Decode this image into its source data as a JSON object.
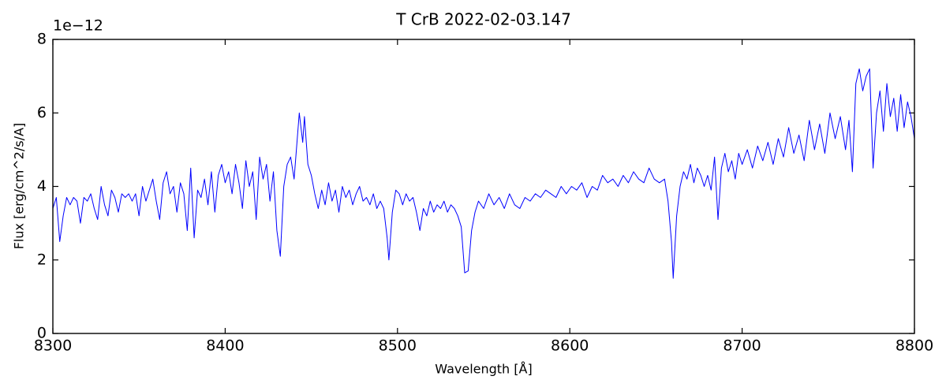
{
  "chart_data": {
    "type": "line",
    "title": "T CrB  2022-02-03.147",
    "x_label": "Wavelength [Å]",
    "y_label": "Flux [erg/cm^2/s/A]",
    "y_offset_label": "1e−12",
    "xlim": [
      8300,
      8800
    ],
    "xticks": [
      8300,
      8400,
      8500,
      8600,
      8700,
      8800
    ],
    "ylim": [
      0,
      8
    ],
    "yticks": [
      0,
      2,
      4,
      6,
      8
    ],
    "grid": false,
    "series": [
      {
        "color": "#0000ff",
        "x": [
          8300,
          8302,
          8304,
          8306,
          8308,
          8310,
          8312,
          8314,
          8316,
          8318,
          8320,
          8322,
          8324,
          8326,
          8328,
          8330,
          8332,
          8334,
          8336,
          8338,
          8340,
          8342,
          8344,
          8346,
          8348,
          8350,
          8352,
          8354,
          8356,
          8358,
          8360,
          8362,
          8364,
          8366,
          8368,
          8370,
          8372,
          8374,
          8376,
          8378,
          8380,
          8382,
          8384,
          8386,
          8388,
          8390,
          8392,
          8394,
          8396,
          8398,
          8400,
          8402,
          8404,
          8406,
          8408,
          8410,
          8412,
          8414,
          8416,
          8418,
          8420,
          8422,
          8424,
          8426,
          8428,
          8430,
          8432,
          8434,
          8436,
          8438,
          8440,
          8442,
          8443,
          8445,
          8446,
          8448,
          8450,
          8452,
          8454,
          8456,
          8458,
          8460,
          8462,
          8464,
          8466,
          8468,
          8470,
          8472,
          8474,
          8476,
          8478,
          8480,
          8482,
          8484,
          8486,
          8488,
          8490,
          8492,
          8494,
          8495,
          8497,
          8499,
          8501,
          8503,
          8505,
          8507,
          8509,
          8511,
          8513,
          8515,
          8517,
          8519,
          8521,
          8523,
          8525,
          8527,
          8529,
          8531,
          8533,
          8535,
          8537,
          8539,
          8541,
          8543,
          8545,
          8547,
          8550,
          8553,
          8556,
          8559,
          8562,
          8565,
          8568,
          8571,
          8574,
          8577,
          8580,
          8583,
          8586,
          8589,
          8592,
          8595,
          8598,
          8601,
          8604,
          8607,
          8610,
          8613,
          8616,
          8619,
          8622,
          8625,
          8628,
          8631,
          8634,
          8637,
          8640,
          8643,
          8646,
          8649,
          8652,
          8655,
          8657,
          8659,
          8660,
          8662,
          8664,
          8666,
          8668,
          8670,
          8672,
          8674,
          8676,
          8678,
          8680,
          8682,
          8684,
          8686,
          8688,
          8690,
          8692,
          8694,
          8696,
          8698,
          8700,
          8703,
          8706,
          8709,
          8712,
          8715,
          8718,
          8721,
          8724,
          8727,
          8730,
          8733,
          8736,
          8739,
          8742,
          8745,
          8748,
          8751,
          8754,
          8757,
          8760,
          8762,
          8764,
          8766,
          8768,
          8770,
          8772,
          8774,
          8776,
          8778,
          8780,
          8782,
          8784,
          8786,
          8788,
          8790,
          8792,
          8794,
          8796,
          8798,
          8800
        ],
        "values": [
          3.4,
          3.7,
          2.5,
          3.2,
          3.7,
          3.5,
          3.7,
          3.6,
          3.0,
          3.7,
          3.6,
          3.8,
          3.4,
          3.1,
          4.0,
          3.5,
          3.2,
          3.9,
          3.7,
          3.3,
          3.8,
          3.7,
          3.8,
          3.6,
          3.8,
          3.2,
          4.0,
          3.6,
          3.9,
          4.2,
          3.6,
          3.1,
          4.1,
          4.4,
          3.8,
          4.0,
          3.3,
          4.1,
          3.8,
          2.8,
          4.5,
          2.6,
          3.9,
          3.7,
          4.2,
          3.5,
          4.4,
          3.3,
          4.3,
          4.6,
          4.1,
          4.4,
          3.8,
          4.6,
          4.1,
          3.4,
          4.7,
          4.0,
          4.4,
          3.1,
          4.8,
          4.2,
          4.6,
          3.6,
          4.4,
          2.8,
          2.1,
          4.0,
          4.6,
          4.8,
          4.2,
          5.4,
          6.0,
          5.2,
          5.9,
          4.6,
          4.3,
          3.8,
          3.4,
          3.9,
          3.5,
          4.1,
          3.6,
          3.9,
          3.3,
          4.0,
          3.7,
          3.9,
          3.5,
          3.8,
          4.0,
          3.6,
          3.7,
          3.5,
          3.8,
          3.4,
          3.6,
          3.4,
          2.6,
          2.0,
          3.3,
          3.9,
          3.8,
          3.5,
          3.8,
          3.6,
          3.7,
          3.3,
          2.8,
          3.4,
          3.2,
          3.6,
          3.3,
          3.5,
          3.4,
          3.6,
          3.3,
          3.5,
          3.4,
          3.2,
          2.9,
          1.65,
          1.7,
          2.8,
          3.3,
          3.6,
          3.4,
          3.8,
          3.5,
          3.7,
          3.4,
          3.8,
          3.5,
          3.4,
          3.7,
          3.6,
          3.8,
          3.7,
          3.9,
          3.8,
          3.7,
          4.0,
          3.8,
          4.0,
          3.9,
          4.1,
          3.7,
          4.0,
          3.9,
          4.3,
          4.1,
          4.2,
          4.0,
          4.3,
          4.1,
          4.4,
          4.2,
          4.1,
          4.5,
          4.2,
          4.1,
          4.2,
          3.6,
          2.5,
          1.5,
          3.2,
          4.0,
          4.4,
          4.2,
          4.6,
          4.1,
          4.5,
          4.3,
          4.0,
          4.3,
          3.9,
          4.8,
          3.1,
          4.5,
          4.9,
          4.4,
          4.7,
          4.2,
          4.9,
          4.6,
          5.0,
          4.5,
          5.1,
          4.7,
          5.2,
          4.6,
          5.3,
          4.8,
          5.6,
          4.9,
          5.4,
          4.7,
          5.8,
          5.0,
          5.7,
          4.9,
          6.0,
          5.3,
          5.9,
          5.0,
          5.8,
          4.4,
          6.8,
          7.2,
          6.6,
          7.0,
          7.2,
          4.5,
          6.0,
          6.6,
          5.5,
          6.8,
          5.9,
          6.4,
          5.5,
          6.5,
          5.6,
          6.3,
          5.9,
          5.3
        ]
      }
    ]
  }
}
